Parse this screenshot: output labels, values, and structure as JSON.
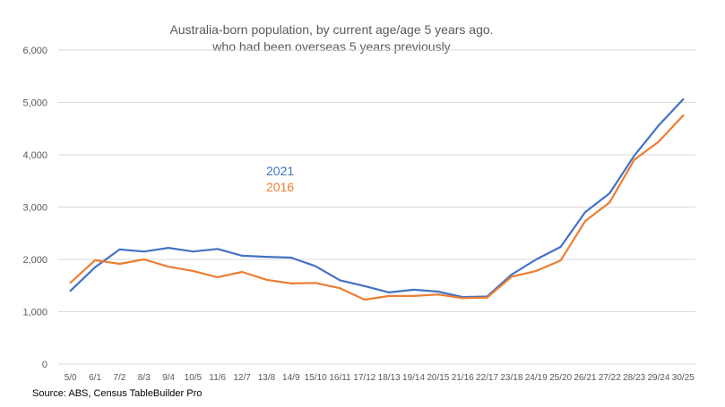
{
  "chart_data": {
    "type": "line",
    "title": [
      "Australia-born population, by current age/age 5 years ago.",
      "who had been overseas 5 years previously"
    ],
    "xlabel": "",
    "ylabel": "",
    "ylim": [
      0,
      6000
    ],
    "yticks": [
      0,
      1000,
      2000,
      3000,
      4000,
      5000,
      6000
    ],
    "ytick_labels": [
      "0",
      "1,000",
      "2,000",
      "3,000",
      "4,000",
      "5,000",
      "6,000"
    ],
    "grid": true,
    "legend_placement": "inside-left-center",
    "categories": [
      "5/0",
      "6/1",
      "7/2",
      "8/3",
      "9/4",
      "10/5",
      "11/6",
      "12/7",
      "13/8",
      "14/9",
      "15/10",
      "16/11",
      "17/12",
      "18/13",
      "19/14",
      "20/15",
      "21/16",
      "22/17",
      "23/18",
      "24/19",
      "25/20",
      "26/21",
      "27/22",
      "28/23",
      "29/24",
      "30/25"
    ],
    "series": [
      {
        "name": "2021",
        "color": "#4472C4",
        "values": [
          1400,
          1850,
          2190,
          2150,
          2220,
          2150,
          2200,
          2070,
          2050,
          2035,
          1870,
          1600,
          1490,
          1370,
          1420,
          1385,
          1280,
          1290,
          1710,
          2000,
          2240,
          2900,
          3265,
          3980,
          4560,
          5060
        ]
      },
      {
        "name": "2016",
        "color": "#ED7D31",
        "values": [
          1555,
          1985,
          1915,
          2000,
          1860,
          1780,
          1660,
          1760,
          1610,
          1540,
          1550,
          1450,
          1230,
          1300,
          1300,
          1330,
          1260,
          1270,
          1670,
          1780,
          1980,
          2730,
          3090,
          3900,
          4250,
          4750
        ]
      }
    ],
    "source": "Source: ABS, Census TableBuilder Pro"
  }
}
